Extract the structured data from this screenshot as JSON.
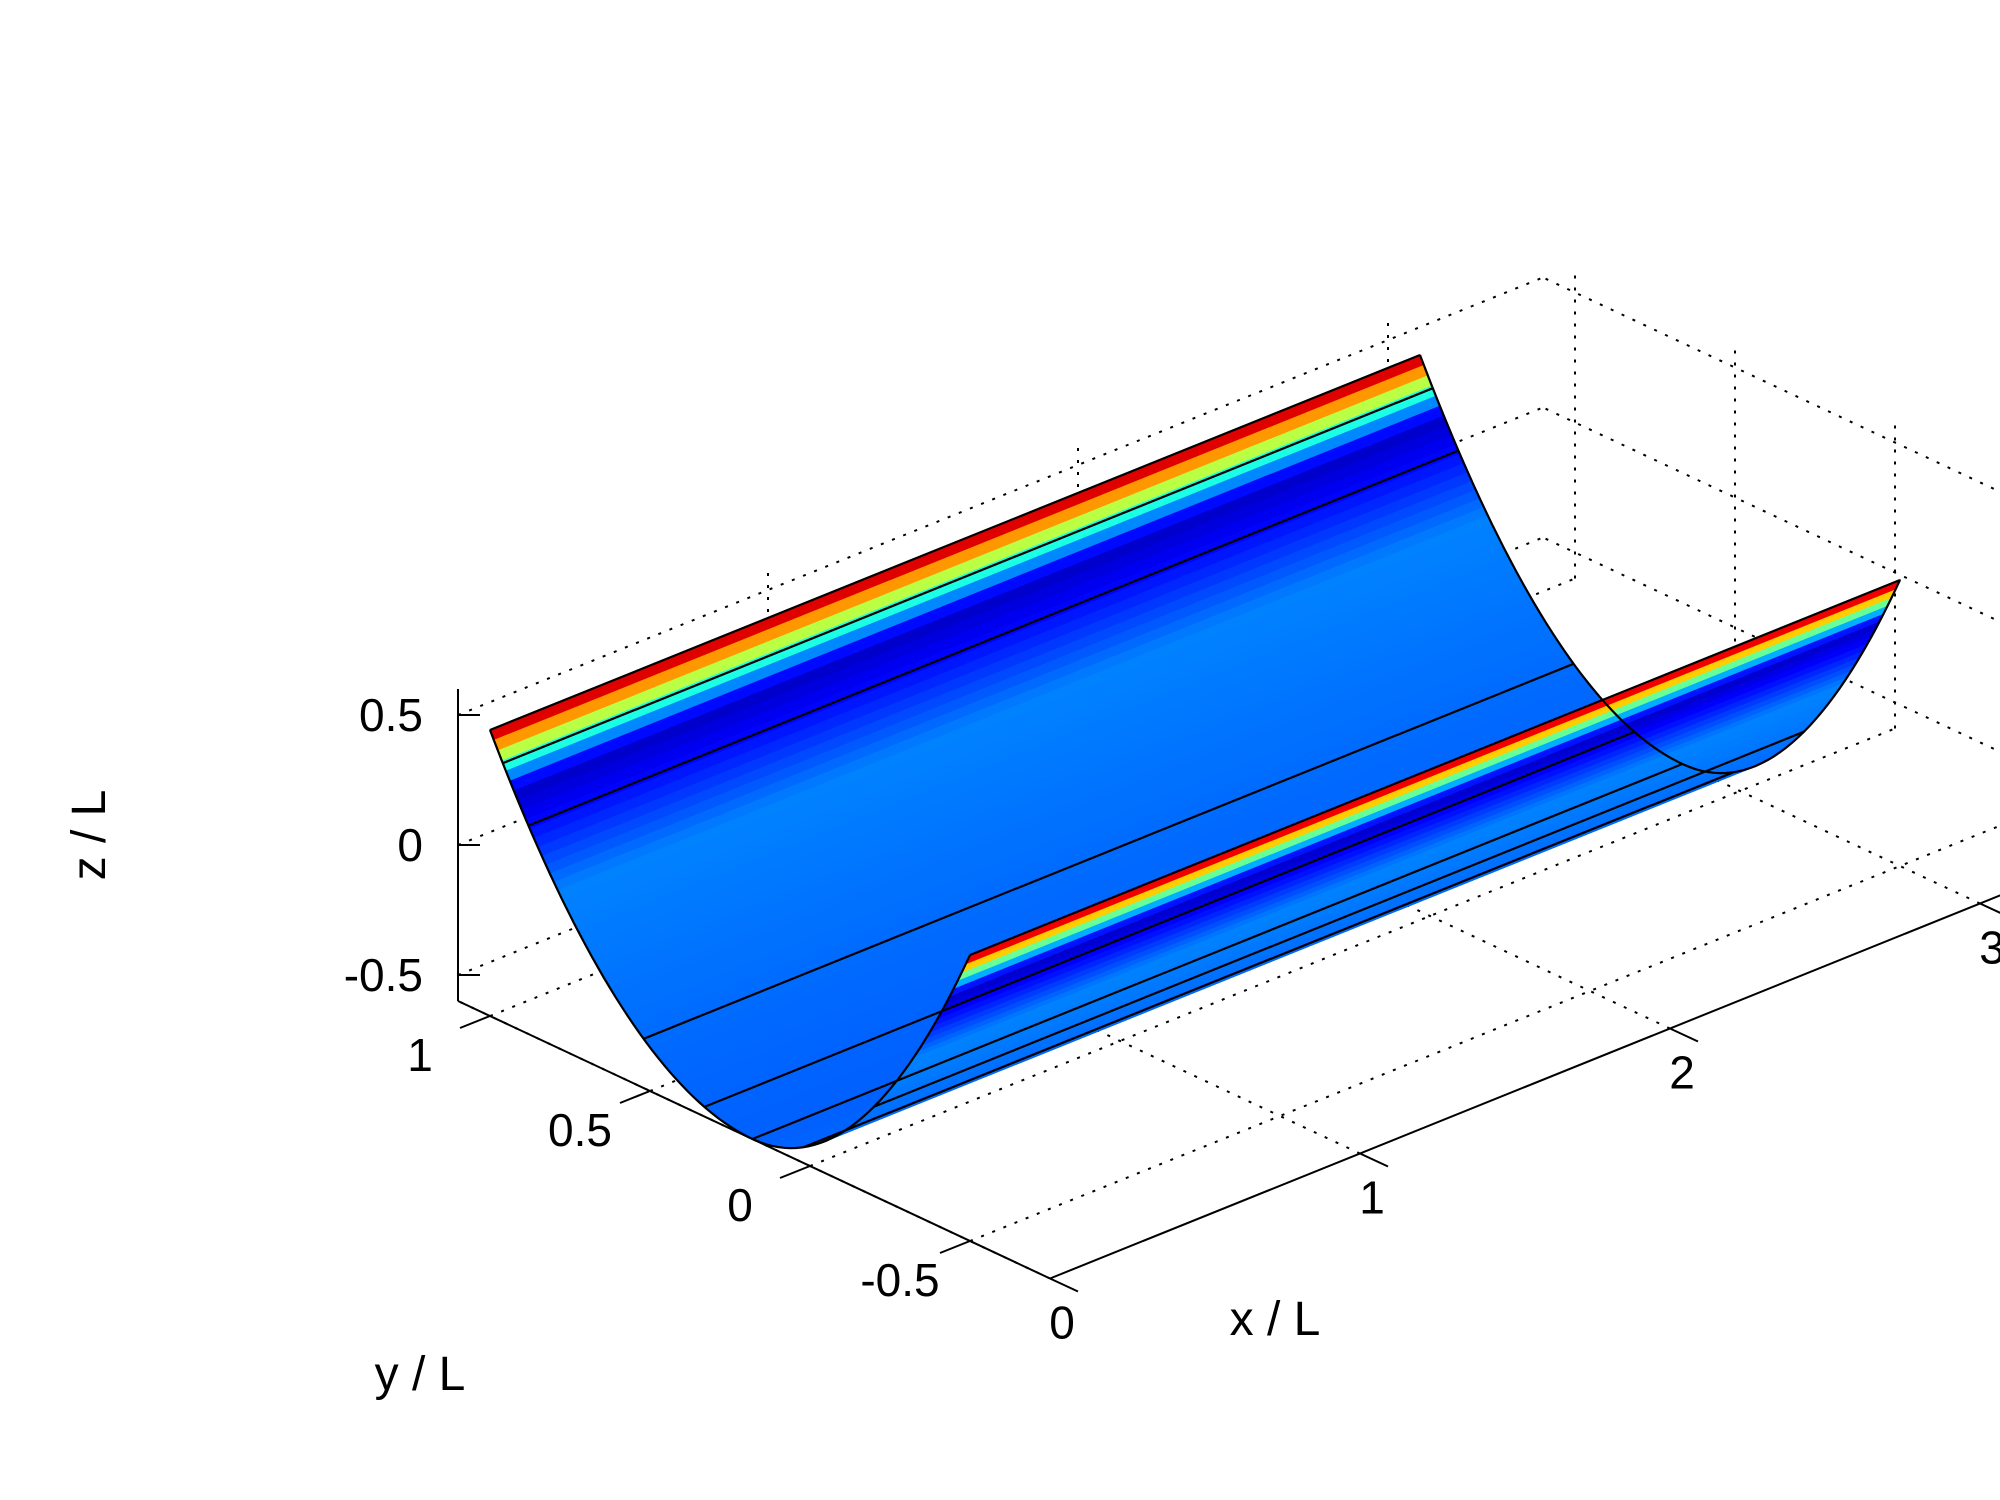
{
  "chart_data": {
    "type": "surface",
    "title": "",
    "xlabel": "x / L",
    "ylabel": "y / L",
    "zlabel": "z / L",
    "xlim": [
      0,
      3.5
    ],
    "ylim": [
      -0.75,
      1.1
    ],
    "zlim": [
      -0.6,
      0.6
    ],
    "x_ticks": [
      0,
      1,
      2,
      3
    ],
    "y_ticks": [
      -0.5,
      0,
      0.5,
      1
    ],
    "z_ticks": [
      -0.5,
      0,
      0.5
    ],
    "x_tick_labels": [
      "0",
      "1",
      "2",
      "3"
    ],
    "y_tick_labels": [
      "-0.5",
      "0",
      "0.5",
      "1"
    ],
    "z_tick_labels": [
      "-0.5",
      "0",
      "0.5"
    ],
    "grid": true,
    "colormap": "jet",
    "surface": {
      "description": "parabolic trough, constant along x",
      "x_range": [
        0,
        3
      ],
      "y_range": [
        -0.5,
        1.0
      ],
      "y_vertex": 0.18,
      "z_vertex": -0.6,
      "y_mesh_lines": [
        -0.2,
        0.02,
        0.18,
        0.33,
        0.52,
        0.88,
        0.96
      ]
    }
  }
}
